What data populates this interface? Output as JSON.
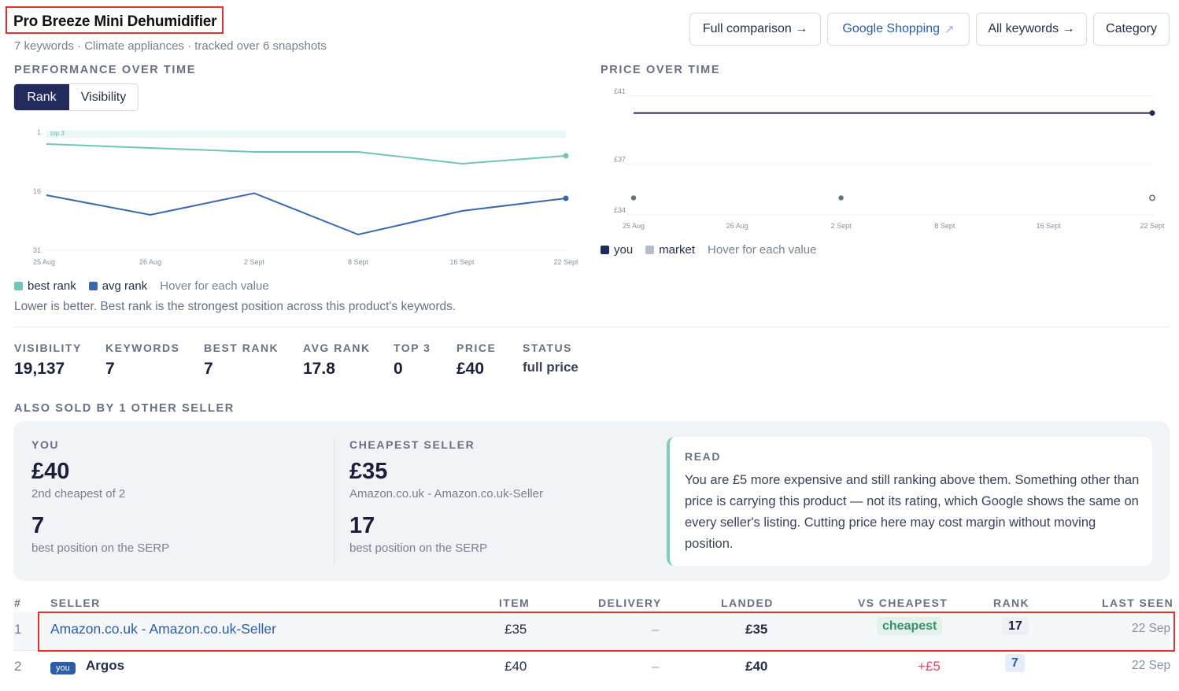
{
  "header": {
    "title": "Pro Breeze Mini Dehumidifier",
    "subtitle": "7 keywords · Climate appliances · tracked over 6 snapshots",
    "buttons": {
      "full_comparison": "Full comparison →",
      "google_shopping": "Google Shopping",
      "all_keywords": "All keywords →",
      "category": "Category"
    }
  },
  "performance": {
    "heading": "PERFORMANCE OVER TIME",
    "tabs": {
      "rank": "Rank",
      "visibility": "Visibility"
    },
    "band_label": "top 3",
    "legend": {
      "best": "best rank",
      "avg": "avg rank",
      "hint": "Hover for each value"
    },
    "note": "Lower is better. Best rank is the strongest position across this product's keywords."
  },
  "price_section": {
    "heading": "PRICE OVER TIME",
    "legend": {
      "you": "you",
      "market": "market",
      "hint": "Hover for each value"
    }
  },
  "chart_data": [
    {
      "type": "line",
      "x": [
        "25 Aug",
        "26 Aug",
        "2 Sept",
        "8 Sept",
        "16 Sept",
        "22 Sept"
      ],
      "y_ticks": [
        "1",
        "16",
        "31"
      ],
      "ylim": [
        1,
        31
      ],
      "y_inverted": true,
      "series": [
        {
          "name": "best rank",
          "color": "#6fc6b4",
          "values": [
            4,
            5,
            6,
            6,
            9,
            7
          ]
        },
        {
          "name": "avg rank",
          "color": "#3a67ad",
          "values": [
            17,
            22,
            16.5,
            27,
            21,
            17.8
          ]
        }
      ]
    },
    {
      "type": "line",
      "x": [
        "25 Aug",
        "26 Aug",
        "2 Sept",
        "8 Sept",
        "16 Sept",
        "22 Sept"
      ],
      "y_ticks": [
        "£41",
        "£37",
        "£34"
      ],
      "ylim": [
        34,
        41
      ],
      "series": [
        {
          "name": "you",
          "color": "#232a5c",
          "values": [
            40,
            40,
            40,
            40,
            40,
            40
          ]
        },
        {
          "name": "market",
          "color": "#6b7080",
          "points": [
            {
              "x": "25 Aug",
              "y": 35
            },
            {
              "x": "2 Sept",
              "y": 35
            },
            {
              "x": "22 Sept",
              "y": 35
            }
          ]
        }
      ]
    }
  ],
  "stats": [
    {
      "label": "VISIBILITY",
      "value": "19,137"
    },
    {
      "label": "KEYWORDS",
      "value": "7"
    },
    {
      "label": "BEST RANK",
      "value": "7"
    },
    {
      "label": "AVG RANK",
      "value": "17.8"
    },
    {
      "label": "TOP 3",
      "value": "0"
    },
    {
      "label": "PRICE",
      "value": "£40"
    },
    {
      "label": "STATUS",
      "value": "full price"
    }
  ],
  "sellers_section": {
    "heading": "ALSO SOLD BY 1 OTHER SELLER",
    "you": {
      "label": "YOU",
      "price": "£40",
      "price_note": "2nd cheapest of 2",
      "rank": "7",
      "rank_note": "best position on the SERP"
    },
    "cheapest": {
      "label": "CHEAPEST SELLER",
      "price": "£35",
      "price_note": "Amazon.co.uk - Amazon.co.uk-Seller",
      "rank": "17",
      "rank_note": "best position on the SERP"
    },
    "read": {
      "label": "READ",
      "text": "You are £5 more expensive and still ranking above them. Something other than price is carrying this product — not its rating, which Google shows the same on every seller's listing. Cutting price here may cost margin without moving position."
    }
  },
  "table": {
    "columns": [
      "#",
      "SELLER",
      "ITEM",
      "DELIVERY",
      "LANDED",
      "VS CHEAPEST",
      "RANK",
      "LAST SEEN"
    ],
    "rows": [
      {
        "num": "1",
        "seller": "Amazon.co.uk - Amazon.co.uk-Seller",
        "you": false,
        "item": "£35",
        "delivery": "–",
        "landed": "£35",
        "vs": "cheapest",
        "rank": "17",
        "last_seen": "22 Sep"
      },
      {
        "num": "2",
        "seller": "Argos",
        "you": true,
        "you_label": "you",
        "item": "£40",
        "delivery": "–",
        "landed": "£40",
        "vs": "+£5",
        "rank": "7",
        "last_seen": "22 Sep"
      }
    ]
  },
  "colors": {
    "brand": "#232a5c",
    "accent": "#2c5da8",
    "teal": "#6fc6b4",
    "red": "#e0332f",
    "danger": "#e2465a"
  }
}
